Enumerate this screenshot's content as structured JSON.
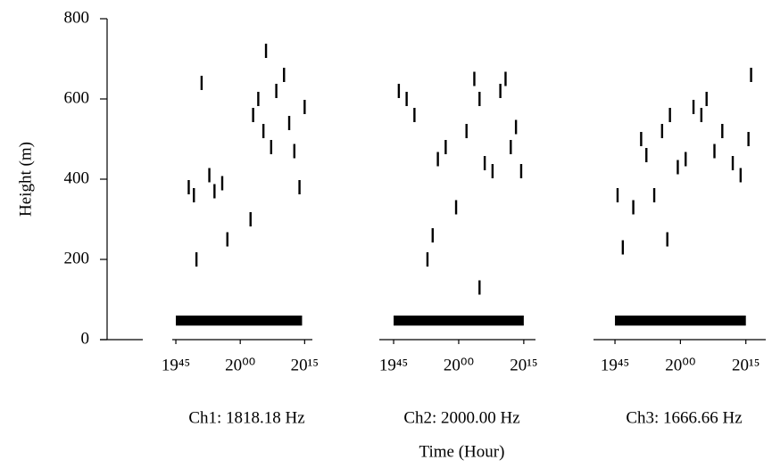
{
  "chart_data": [
    {
      "type": "scatter",
      "title": "Ch1: 1818.18 Hz",
      "ylabel": "Height (m)",
      "ylim": [
        0,
        800
      ],
      "yticks": [
        0,
        200,
        400,
        600,
        800
      ],
      "xlim": [
        19.736,
        20.28
      ],
      "xticks": [
        {
          "value": 19.75,
          "label": "19⁴⁵"
        },
        {
          "value": 20,
          "label": "20⁰⁰"
        },
        {
          "value": 20.25,
          "label": "20¹⁵"
        }
      ],
      "x": [
        19.8,
        19.82,
        19.85,
        19.88,
        19.9,
        19.93,
        19.95,
        19.83,
        20.05,
        20.07,
        20.09,
        20.12,
        20.14,
        20.17,
        20.19,
        20.21,
        20.23,
        20.25,
        20.04,
        20.1
      ],
      "y": [
        380,
        360,
        640,
        410,
        370,
        390,
        250,
        200,
        560,
        600,
        520,
        480,
        620,
        660,
        540,
        470,
        380,
        580,
        300,
        720
      ],
      "clutter": {
        "x": [
          19.75,
          20.24
        ],
        "y": [
          35,
          60
        ]
      },
      "color": "#000000"
    },
    {
      "type": "scatter",
      "title": "Ch2: 2000.00 Hz",
      "xlabel": "Time (Hour)",
      "ylim": [
        0,
        800
      ],
      "xlim": [
        19.695,
        20.295
      ],
      "xticks": [
        {
          "value": 19.75,
          "label": "19⁴⁵"
        },
        {
          "value": 20,
          "label": "20⁰⁰"
        },
        {
          "value": 20.25,
          "label": "20¹⁵"
        }
      ],
      "x": [
        19.77,
        19.8,
        19.83,
        19.88,
        19.92,
        19.95,
        19.99,
        20.03,
        20.06,
        20.08,
        20.1,
        20.13,
        20.16,
        20.18,
        20.2,
        20.22,
        20.24,
        20.08,
        19.9
      ],
      "y": [
        620,
        600,
        560,
        200,
        450,
        480,
        330,
        520,
        650,
        600,
        440,
        420,
        620,
        650,
        480,
        530,
        420,
        130,
        260
      ],
      "clutter": {
        "x": [
          19.75,
          20.25
        ],
        "y": [
          35,
          60
        ]
      },
      "color": "#000000"
    },
    {
      "type": "scatter",
      "title": "Ch3: 1666.66 Hz",
      "ylim": [
        0,
        800
      ],
      "xlim": [
        19.668,
        20.326
      ],
      "xticks": [
        {
          "value": 19.75,
          "label": "19⁴⁵"
        },
        {
          "value": 20,
          "label": "20⁰⁰"
        },
        {
          "value": 20.25,
          "label": "20¹⁵"
        }
      ],
      "x": [
        19.76,
        19.78,
        19.82,
        19.85,
        19.87,
        19.9,
        19.93,
        19.96,
        19.99,
        20.02,
        20.05,
        20.08,
        20.1,
        20.13,
        20.16,
        20.2,
        20.23,
        20.26,
        20.27,
        19.95
      ],
      "y": [
        360,
        230,
        330,
        500,
        460,
        360,
        520,
        560,
        430,
        450,
        580,
        560,
        600,
        470,
        520,
        440,
        410,
        500,
        660,
        250
      ],
      "clutter": {
        "x": [
          19.75,
          20.25
        ],
        "y": [
          35,
          60
        ]
      },
      "color": "#000000"
    }
  ]
}
